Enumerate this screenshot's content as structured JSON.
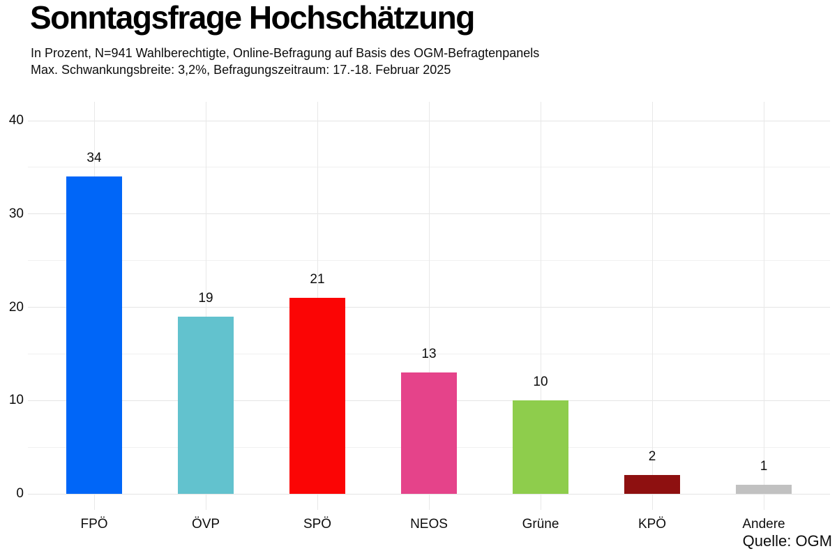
{
  "header": {
    "title": "Sonntagsfrage Hochschätzung",
    "subtitle_line1": "In Prozent, N=941 Wahlberechtigte, Online-Befragung auf Basis des OGM-Befragtenpanels",
    "subtitle_line2": "Max. Schwankungsbreite: 3,2%, Befragungszeitraum: 17.-18. Februar 2025"
  },
  "chart_data": {
    "type": "bar",
    "title": "Sonntagsfrage Hochschätzung",
    "subtitle": "In Prozent, N=941 Wahlberechtigte, Online-Befragung auf Basis des OGM-Befragtenpanels — Max. Schwankungsbreite: 3,2%, Befragungszeitraum: 17.-18. Februar 2025",
    "categories": [
      "FPÖ",
      "ÖVP",
      "SPÖ",
      "NEOS",
      "Grüne",
      "KPÖ",
      "Andere"
    ],
    "values": [
      34,
      19,
      21,
      13,
      10,
      2,
      1
    ],
    "bar_colors": [
      "#0066f8",
      "#62c2ce",
      "#fb0505",
      "#e5438a",
      "#8ecd4c",
      "#8e1010",
      "#c1c1c1"
    ],
    "xlabel": "",
    "ylabel": "",
    "ylim": [
      0,
      40
    ],
    "yticks": [
      0,
      10,
      20,
      30,
      40
    ],
    "yticks_minor": [
      5,
      15,
      25,
      35
    ],
    "grid": "horizontal major and minor lines, vertical line at each category center",
    "legend": "none",
    "unit": "percent",
    "data_labels": true
  },
  "footer": {
    "source": "Quelle: OGM"
  }
}
